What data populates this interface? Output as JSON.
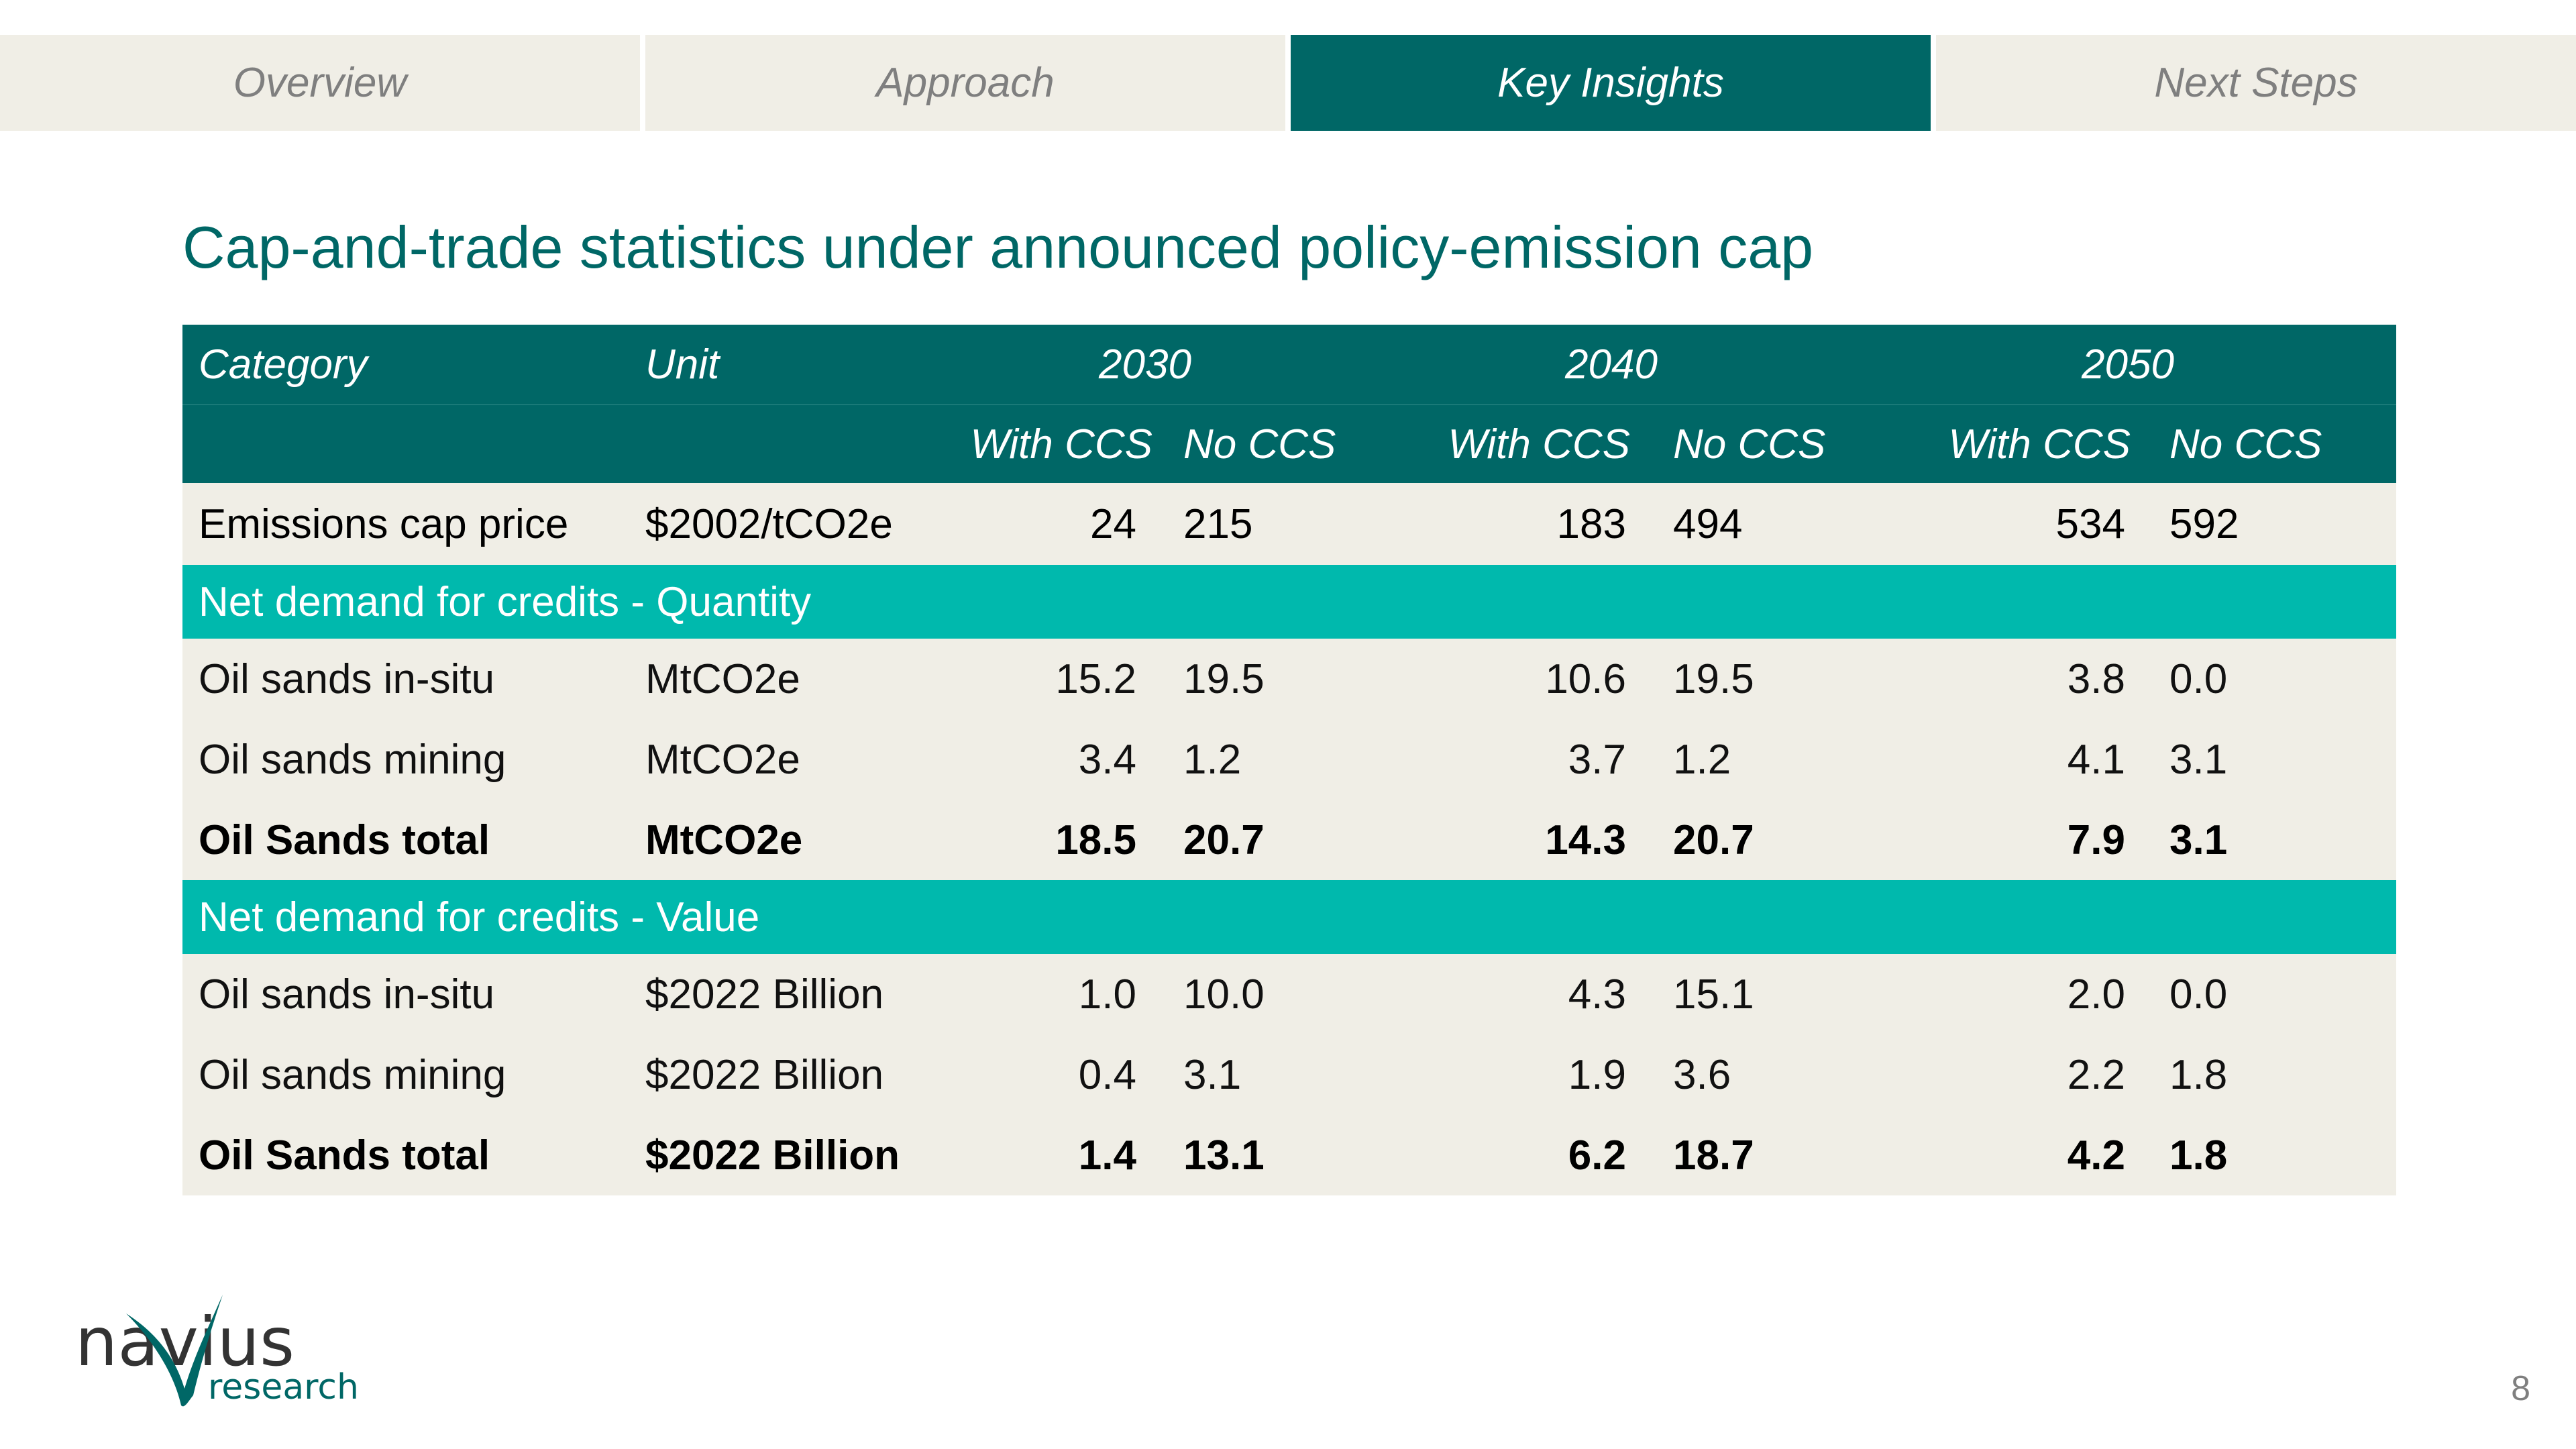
{
  "tabs": [
    {
      "label": "Overview",
      "active": false
    },
    {
      "label": "Approach",
      "active": false
    },
    {
      "label": "Key Insights",
      "active": true
    },
    {
      "label": "Next Steps",
      "active": false
    }
  ],
  "title": "Cap-and-trade statistics under announced policy-emission cap",
  "table": {
    "headers": {
      "category": "Category",
      "unit": "Unit",
      "years": [
        "2030",
        "2040",
        "2050"
      ],
      "sub": [
        "With CCS",
        "No CCS"
      ]
    },
    "cap_row": {
      "category": "Emissions cap price",
      "unit": "$2002/tCO2e",
      "values": [
        "24",
        "215",
        "183",
        "494",
        "534",
        "592"
      ]
    },
    "sections": [
      {
        "label": "Net demand for credits - Quantity",
        "rows": [
          {
            "category": "Oil sands in-situ",
            "unit": "MtCO2e",
            "values": [
              "15.2",
              "19.5",
              "10.6",
              "19.5",
              "3.8",
              "0.0"
            ]
          },
          {
            "category": "Oil sands mining",
            "unit": "MtCO2e",
            "values": [
              "3.4",
              "1.2",
              "3.7",
              "1.2",
              "4.1",
              "3.1"
            ]
          },
          {
            "category": "Oil Sands total",
            "unit": "MtCO2e",
            "values": [
              "18.5",
              "20.7",
              "14.3",
              "20.7",
              "7.9",
              "3.1"
            ]
          }
        ]
      },
      {
        "label": "Net demand for credits - Value",
        "rows": [
          {
            "category": "Oil sands in-situ",
            "unit": "$2022 Billion",
            "values": [
              "1.0",
              "10.0",
              "4.3",
              "15.1",
              "2.0",
              "0.0"
            ]
          },
          {
            "category": "Oil sands mining",
            "unit": "$2022 Billion",
            "values": [
              "0.4",
              "3.1",
              "1.9",
              "3.6",
              "2.2",
              "1.8"
            ]
          },
          {
            "category": "Oil Sands total",
            "unit": "$2022 Billion",
            "values": [
              "1.4",
              "13.1",
              "6.2",
              "18.7",
              "4.2",
              "1.8"
            ]
          }
        ]
      }
    ]
  },
  "logo": {
    "name": "navius",
    "sub": "research"
  },
  "page_number": "8",
  "colors": {
    "primary": "#006766",
    "accent": "#00b9ad",
    "row_bg": "#f0eee6",
    "tab_bg": "#f0eee6"
  }
}
